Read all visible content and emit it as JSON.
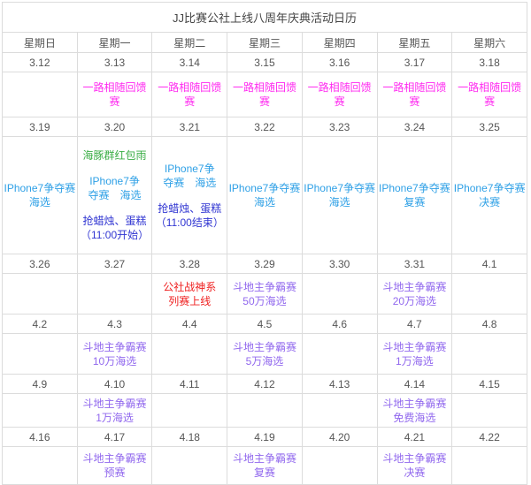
{
  "title": "JJ比赛公社上线八周年庆典活动日历",
  "weekday_headers": [
    "星期日",
    "星期一",
    "星期二",
    "星期三",
    "星期四",
    "星期五",
    "星期六"
  ],
  "colors": {
    "magenta": "#FF2BF0",
    "green": "#3BAE46",
    "lightblue": "#2EA0E6",
    "royalblue": "#3136D2",
    "red": "#EF2020",
    "purple": "#9168EE",
    "text_gray": "#555555",
    "title_gray": "#444444",
    "border_gray": "#DCDCDC"
  },
  "weeks": [
    {
      "dates": [
        "3.12",
        "3.13",
        "3.14",
        "3.15",
        "3.16",
        "3.17",
        "3.18"
      ],
      "cells": [
        [],
        [
          {
            "color": "magenta",
            "lines": [
              "一路相随回馈赛"
            ]
          }
        ],
        [
          {
            "color": "magenta",
            "lines": [
              "一路相随回馈赛"
            ]
          }
        ],
        [
          {
            "color": "magenta",
            "lines": [
              "一路相随回馈赛"
            ]
          }
        ],
        [
          {
            "color": "magenta",
            "lines": [
              "一路相随回馈赛"
            ]
          }
        ],
        [
          {
            "color": "magenta",
            "lines": [
              "一路相随回馈赛"
            ]
          }
        ],
        [
          {
            "color": "magenta",
            "lines": [
              "一路相随回馈赛"
            ]
          }
        ]
      ]
    },
    {
      "dates": [
        "3.19",
        "3.20",
        "3.21",
        "3.22",
        "3.23",
        "3.24",
        "3.25"
      ],
      "cells": [
        [
          {
            "color": "lightblue",
            "lines": [
              "IPhone7争夺赛",
              "海选"
            ]
          }
        ],
        [
          {
            "color": "green",
            "lines": [
              "海豚群红包雨"
            ]
          },
          {
            "color": "lightblue",
            "lines": [
              "IPhone7争",
              "夺赛　海选"
            ]
          },
          {
            "color": "royalblue",
            "lines": [
              "抢蜡烛、蛋糕",
              "（11:00开始）"
            ]
          }
        ],
        [
          {
            "color": "lightblue",
            "lines": [
              "IPhone7争",
              "夺赛　海选"
            ]
          },
          {
            "color": "royalblue",
            "lines": [
              "抢蜡烛、蛋糕",
              "（11:00结束）"
            ]
          }
        ],
        [
          {
            "color": "lightblue",
            "lines": [
              "IPhone7争夺赛",
              "海选"
            ]
          }
        ],
        [
          {
            "color": "lightblue",
            "lines": [
              "IPhone7争夺赛",
              "海选"
            ]
          }
        ],
        [
          {
            "color": "lightblue",
            "lines": [
              "IPhone7争夺赛",
              "复赛"
            ]
          }
        ],
        [
          {
            "color": "lightblue",
            "lines": [
              "IPhone7争夺赛",
              "决赛"
            ]
          }
        ]
      ]
    },
    {
      "dates": [
        "3.26",
        "3.27",
        "3.28",
        "3.29",
        "3.30",
        "3.31",
        "4.1"
      ],
      "cells": [
        [],
        [],
        [
          {
            "color": "red",
            "lines": [
              "公社战神系",
              "列赛上线"
            ]
          }
        ],
        [
          {
            "color": "purple",
            "lines": [
              "斗地主争霸赛",
              "50万海选"
            ]
          }
        ],
        [],
        [
          {
            "color": "purple",
            "lines": [
              "斗地主争霸赛",
              "20万海选"
            ]
          }
        ],
        []
      ]
    },
    {
      "dates": [
        "4.2",
        "4.3",
        "4.4",
        "4.5",
        "4.6",
        "4.7",
        "4.8"
      ],
      "cells": [
        [],
        [
          {
            "color": "purple",
            "lines": [
              "斗地主争霸赛",
              "10万海选"
            ]
          }
        ],
        [],
        [
          {
            "color": "purple",
            "lines": [
              "斗地主争霸赛",
              "5万海选"
            ]
          }
        ],
        [],
        [
          {
            "color": "purple",
            "lines": [
              "斗地主争霸赛",
              "1万海选"
            ]
          }
        ],
        []
      ]
    },
    {
      "dates": [
        "4.9",
        "4.10",
        "4.11",
        "4.12",
        "4.13",
        "4.14",
        "4.15"
      ],
      "cells": [
        [],
        [
          {
            "color": "purple",
            "lines": [
              "斗地主争霸赛",
              "1万海选"
            ]
          }
        ],
        [],
        [],
        [],
        [
          {
            "color": "purple",
            "lines": [
              "斗地主争霸赛",
              "免费海选"
            ]
          }
        ],
        []
      ]
    },
    {
      "dates": [
        "4.16",
        "4.17",
        "4.18",
        "4.19",
        "4.20",
        "4.21",
        "4.22"
      ],
      "cells": [
        [],
        [
          {
            "color": "purple",
            "lines": [
              "斗地主争霸赛",
              "预赛"
            ]
          }
        ],
        [],
        [
          {
            "color": "purple",
            "lines": [
              "斗地主争霸赛",
              "复赛"
            ]
          }
        ],
        [],
        [
          {
            "color": "purple",
            "lines": [
              "斗地主争霸赛",
              "决赛"
            ]
          }
        ],
        []
      ]
    }
  ]
}
